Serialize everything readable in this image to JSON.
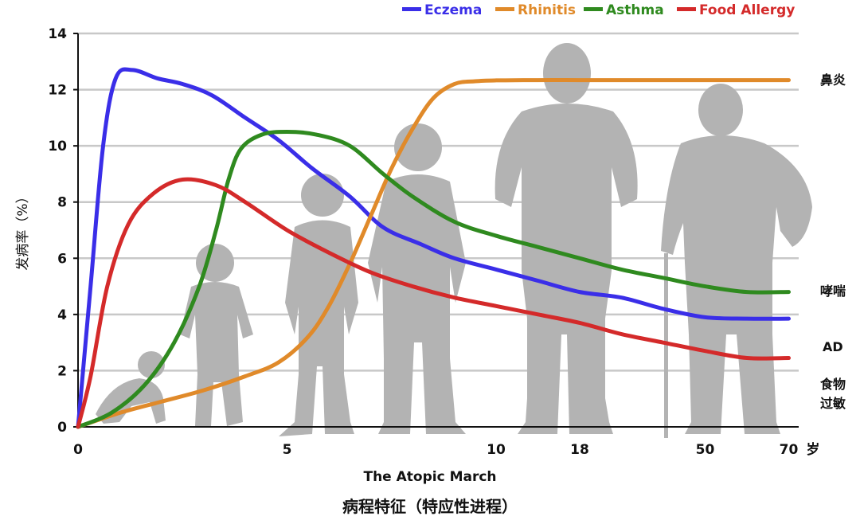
{
  "chart_data": {
    "type": "line",
    "title": "",
    "xlabel": "The Atopic March",
    "ylabel": "发病率（%）",
    "caption": "病程特征（特应性进程）",
    "ylim": [
      0,
      14
    ],
    "yticks": [
      "0",
      "2",
      "4",
      "6",
      "8",
      "10",
      "12",
      "14"
    ],
    "x_tick_labels": [
      "0",
      "5",
      "10",
      "18",
      "50",
      "70"
    ],
    "x_unit": "岁",
    "grid": true,
    "legend_position": "top-right",
    "series": [
      {
        "name": "Eczema",
        "color": "#3a2ee8",
        "end_label": "AD",
        "points": [
          [
            0,
            0
          ],
          [
            0.3,
            5
          ],
          [
            0.6,
            10
          ],
          [
            0.9,
            12.4
          ],
          [
            1.3,
            12.7
          ],
          [
            1.9,
            12.4
          ],
          [
            2.5,
            12.2
          ],
          [
            3.2,
            11.8
          ],
          [
            4,
            11
          ],
          [
            4.8,
            10.2
          ],
          [
            5.6,
            9.2
          ],
          [
            6.5,
            8.2
          ],
          [
            7.3,
            7.1
          ],
          [
            8.2,
            6.5
          ],
          [
            9,
            6.0
          ],
          [
            10,
            5.6
          ],
          [
            11,
            5.2
          ],
          [
            12,
            4.8
          ],
          [
            13,
            4.6
          ],
          [
            14,
            4.2
          ],
          [
            15,
            3.9
          ],
          [
            16,
            3.85
          ],
          [
            17,
            3.85
          ]
        ]
      },
      {
        "name": "Rhinitis",
        "color": "#e08a2a",
        "end_label": "鼻炎",
        "points": [
          [
            0,
            0
          ],
          [
            1,
            0.5
          ],
          [
            2,
            0.9
          ],
          [
            3,
            1.3
          ],
          [
            4,
            1.8
          ],
          [
            4.8,
            2.3
          ],
          [
            5.5,
            3.2
          ],
          [
            6,
            4.3
          ],
          [
            6.5,
            5.8
          ],
          [
            7,
            7.5
          ],
          [
            7.5,
            9.2
          ],
          [
            8,
            10.6
          ],
          [
            8.5,
            11.7
          ],
          [
            9,
            12.2
          ],
          [
            9.5,
            12.3
          ],
          [
            10,
            12.33
          ],
          [
            11,
            12.34
          ],
          [
            12,
            12.34
          ],
          [
            13,
            12.34
          ],
          [
            14,
            12.34
          ],
          [
            15,
            12.34
          ],
          [
            16,
            12.34
          ],
          [
            17,
            12.34
          ]
        ]
      },
      {
        "name": "Asthma",
        "color": "#2f8a1f",
        "end_label": "哮喘",
        "points": [
          [
            0,
            0
          ],
          [
            0.8,
            0.5
          ],
          [
            1.6,
            1.5
          ],
          [
            2.3,
            3.0
          ],
          [
            2.9,
            5.0
          ],
          [
            3.3,
            7.0
          ],
          [
            3.6,
            8.8
          ],
          [
            3.9,
            9.9
          ],
          [
            4.4,
            10.4
          ],
          [
            5,
            10.5
          ],
          [
            5.7,
            10.4
          ],
          [
            6.5,
            10.0
          ],
          [
            7.3,
            9.0
          ],
          [
            8,
            8.2
          ],
          [
            9,
            7.3
          ],
          [
            10,
            6.8
          ],
          [
            11,
            6.4
          ],
          [
            12,
            6.0
          ],
          [
            13,
            5.6
          ],
          [
            14,
            5.3
          ],
          [
            15,
            5.0
          ],
          [
            16,
            4.8
          ],
          [
            17,
            4.8
          ]
        ]
      },
      {
        "name": "Food Allergy",
        "color": "#d42a2a",
        "end_label": "食物过敏",
        "points": [
          [
            0,
            0
          ],
          [
            0.3,
            1.8
          ],
          [
            0.7,
            5.0
          ],
          [
            1.2,
            7.2
          ],
          [
            1.8,
            8.3
          ],
          [
            2.5,
            8.8
          ],
          [
            3.3,
            8.6
          ],
          [
            4,
            8.0
          ],
          [
            5,
            7.0
          ],
          [
            6,
            6.2
          ],
          [
            7,
            5.5
          ],
          [
            8,
            5.0
          ],
          [
            9,
            4.6
          ],
          [
            10,
            4.3
          ],
          [
            11,
            4.0
          ],
          [
            12,
            3.7
          ],
          [
            13,
            3.3
          ],
          [
            14,
            3.0
          ],
          [
            15,
            2.7
          ],
          [
            16,
            2.45
          ],
          [
            17,
            2.45
          ]
        ]
      }
    ]
  },
  "legend": [
    {
      "label": "Eczema",
      "color": "#3a2ee8"
    },
    {
      "label": "Rhinitis",
      "color": "#e08a2a"
    },
    {
      "label": "Asthma",
      "color": "#2f8a1f"
    },
    {
      "label": "Food Allergy",
      "color": "#d42a2a"
    }
  ],
  "right_labels": [
    "鼻炎",
    "哮喘",
    "AD",
    "食物",
    "过敏"
  ],
  "silhouettes": [
    "infant-silhouette-icon",
    "toddler-silhouette-icon",
    "child-silhouette-icon",
    "teen-silhouette-icon",
    "adult-man-silhouette-icon",
    "elderly-man-silhouette-icon"
  ]
}
